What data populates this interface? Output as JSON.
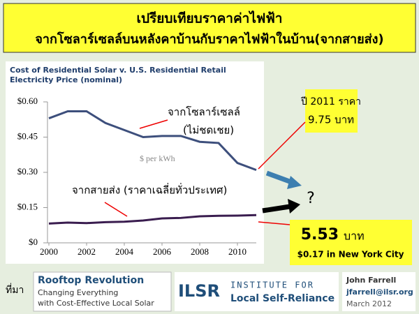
{
  "header": {
    "line1": "เปรียบเทียบราคาค่าไฟฟ้า",
    "line2": "จากโซลาร์เซลล์บนหลังคาบ้านกับราคาไฟฟ้าในบ้าน(จากสายส่ง)"
  },
  "chart_data": {
    "type": "line",
    "title": "Cost of Residential Solar v. U.S. Residential Retail",
    "subtitle": "Electricity Price (nominal)",
    "y_label": "$ per kWh",
    "x": [
      2000,
      2001,
      2002,
      2003,
      2004,
      2005,
      2006,
      2007,
      2008,
      2009,
      2010,
      2011
    ],
    "series": [
      {
        "name": "จากโซลาร์เซลล์",
        "color": "#3d4f7c",
        "values": [
          0.53,
          0.56,
          0.56,
          0.51,
          0.48,
          0.45,
          0.455,
          0.455,
          0.43,
          0.425,
          0.34,
          0.31
        ]
      },
      {
        "name": "จากสายส่ง (ราคาเฉลี่ยทั่วประเทศ)",
        "color": "#3a1d4f",
        "values": [
          0.082,
          0.086,
          0.084,
          0.088,
          0.09,
          0.095,
          0.104,
          0.106,
          0.113,
          0.115,
          0.116,
          0.118
        ]
      }
    ],
    "xlim": [
      2000,
      2011
    ],
    "xticks": [
      2000,
      2002,
      2004,
      2006,
      2008,
      2010
    ],
    "ylim": [
      0,
      0.6
    ],
    "yticks": [
      {
        "value": 0,
        "label": "$0"
      },
      {
        "value": 0.15,
        "label": "$0.15"
      },
      {
        "value": 0.3,
        "label": "$0.30"
      },
      {
        "value": 0.45,
        "label": "$0.45"
      },
      {
        "value": 0.6,
        "label": "$0.60"
      }
    ],
    "series_note": "(ไม่ชดเชย)"
  },
  "callouts": {
    "solar_year": "ปี 2011 ราคา",
    "solar_price": "9.75 บาท",
    "question": "?",
    "grid_price": "5.53",
    "grid_unit": "บาท",
    "grid_usd": "$0.17 in New York City"
  },
  "footer": {
    "source": "ที่มา",
    "book_title": "Rooftop Revolution",
    "book_sub1": "Changing Everything",
    "book_sub2": "with Cost-Effective Local Solar",
    "org_logo": "ILSR",
    "org_line1": "INSTITUTE FOR",
    "org_line2": "Local Self-Reliance",
    "author": "John Farrell",
    "email": "jfarrell@ilsr.org",
    "date": "March 2012"
  }
}
